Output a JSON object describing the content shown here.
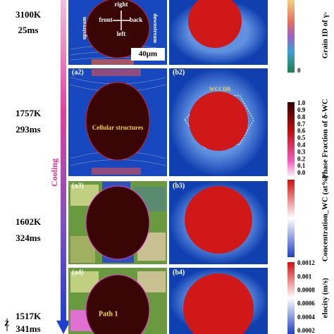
{
  "time_labels": [
    {
      "temperature": "3100K",
      "time": "25ms"
    },
    {
      "temperature": "1757K",
      "time": "293ms"
    },
    {
      "temperature": "1602K",
      "time": "324ms"
    },
    {
      "temperature": "1517K",
      "time": "341ms"
    }
  ],
  "arrow_label": "Cooling",
  "axis_label": "Z",
  "panels": {
    "a1": {
      "annotations": [
        "upstream",
        "downstream",
        "right",
        "left",
        "front",
        "back"
      ],
      "scale_bar": "40μm"
    },
    "a2": {
      "label": "(a2)",
      "annotation": "Cellular structures"
    },
    "b2": {
      "label": "(b2)",
      "annotation": "WCCDB"
    },
    "a3": {
      "label": "(a3)"
    },
    "b3": {
      "label": "(b3)"
    },
    "a4": {
      "label": "(a4)",
      "annotation": "Path 1"
    },
    "b4": {
      "label": "(b4)"
    }
  },
  "colorbars": [
    {
      "title": "Grain ID of γ-",
      "ticks": [
        "0"
      ]
    },
    {
      "title": "Phase Fraction of δ-WC",
      "ticks": [
        "1.0",
        "0.9",
        "0.8",
        "0.7",
        "0.6",
        "0.5",
        "0.4",
        "0.3",
        "0.2",
        "0.1",
        "0.0"
      ]
    },
    {
      "title": "Concentration_WC (at%)"
    },
    {
      "title": "elocity (m/s)",
      "ticks": [
        "0.0012",
        "0.001",
        "0.0008",
        "0.0006",
        "0.0004",
        "0.0002"
      ]
    }
  ]
}
